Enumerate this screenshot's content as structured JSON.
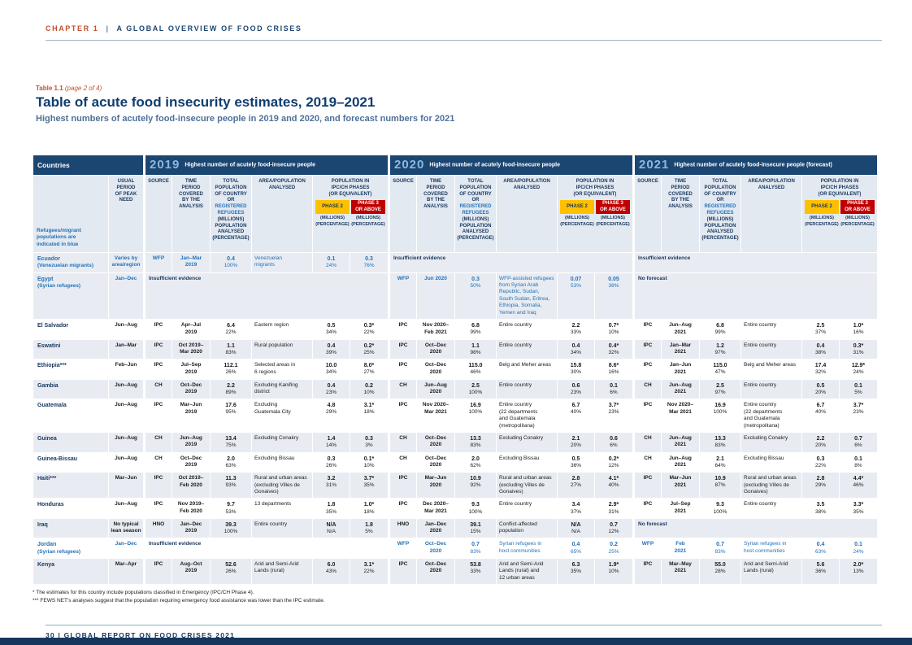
{
  "header": {
    "chapter": "CHAPTER 1",
    "divider": "|",
    "chapter_title": "A GLOBAL OVERVIEW OF FOOD CRISES"
  },
  "title_block": {
    "table_ref": "Table 1.1",
    "table_ref_page": "(page 2 of 4)",
    "title": "Table of acute food insecurity estimates, 2019–2021",
    "subtitle": "Highest numbers of acutely food-insecure people in 2019 and 2020, and forecast numbers for 2021"
  },
  "table": {
    "countries_label": "Countries",
    "refugee_note": "Refugees/migrant populations are indicated in blue",
    "period_header": "USUAL\nPERIOD\nOF PEAK\nNEED",
    "col_headers": {
      "source": "SOURCE",
      "time": "TIME\nPERIOD\nCOVERED\nBY THE\nANALYSIS",
      "total_top": "TOTAL\nPOPULATION\nOF COUNTRY OR",
      "total_blue": "REGISTERED\nREFUGEES",
      "total_bottom": "(MILLIONS)\nPOPULATION\nANALYSED\n(PERCENTAGE)",
      "area": "AREA/POPULATION\nANALYSED",
      "phases": "POPULATION IN\nIPC/CH PHASES\n(OR EQUIVALENT)",
      "phase2": "PHASE 2",
      "phase3": "PHASE 3\nOR ABOVE",
      "phase_sub": "(MILLIONS)\n(PERCENTAGE)"
    },
    "years": [
      {
        "year": "2019",
        "caption": "Highest number of acutely food-insecure people"
      },
      {
        "year": "2020",
        "caption": "Highest number of acutely food-insecure people"
      },
      {
        "year": "2021",
        "caption": "Highest number of acutely food-insecure people (forecast)"
      }
    ],
    "rows": [
      {
        "name": "Ecuador",
        "sub": "(Venezuelan migrants)",
        "blue": true,
        "shaded": true,
        "period": "Varies by\narea/region",
        "years": [
          {
            "source": "WFP",
            "time": "Jan–Mar\n2019",
            "total": "0.4\n100%",
            "area": "Venezuelan\nmigrants",
            "p2": "0.1\n24%",
            "p3": "0.3\n76%"
          },
          {
            "note": "Insufficient evidence"
          },
          {
            "note": "Insufficient evidence"
          }
        ]
      },
      {
        "name": "Egypt",
        "sub": "(Syrian refugees)",
        "blue": true,
        "shaded": true,
        "period": "Jan–Dec",
        "years": [
          {
            "note": "Insufficient evidence"
          },
          {
            "source": "WFP",
            "time": "Jun 2020",
            "total": "0.3\n50%",
            "area": "WFP-assisted refugees\nfrom Syrian Arab\nRepublic, Sudan,\nSouth Sudan, Eritrea,\nEthiopia, Somalia,\nYemen and Iraq",
            "p2": "0.07\n53%",
            "p3": "0.05\n38%"
          },
          {
            "note": "No forecast"
          }
        ]
      },
      {
        "name": "El Salvador",
        "sub": "",
        "blue": false,
        "shaded": false,
        "period": "Jun–Aug",
        "years": [
          {
            "source": "IPC",
            "time": "Apr–Jul\n2019",
            "total": "6.4\n22%",
            "area": "Eastern region",
            "p2": "0.5\n34%",
            "p3": "0.3*\n22%"
          },
          {
            "source": "IPC",
            "time": "Nov 2020–\nFeb 2021",
            "total": "6.8\n99%",
            "area": "Entire country",
            "p2": "2.2\n33%",
            "p3": "0.7*\n10%"
          },
          {
            "source": "IPC",
            "time": "Jun–Aug\n2021",
            "total": "6.8\n99%",
            "area": "Entire country",
            "p2": "2.5\n37%",
            "p3": "1.0*\n16%"
          }
        ]
      },
      {
        "name": "Eswatini",
        "sub": "",
        "blue": false,
        "shaded": true,
        "period": "Jan–Mar",
        "years": [
          {
            "source": "IPC",
            "time": "Oct 2019–\nMar 2020",
            "total": "1.1\n83%",
            "area": "Rural population",
            "p2": "0.4\n39%",
            "p3": "0.2*\n25%"
          },
          {
            "source": "IPC",
            "time": "Oct–Dec\n2020",
            "total": "1.1\n98%",
            "area": "Entire country",
            "p2": "0.4\n34%",
            "p3": "0.4*\n32%"
          },
          {
            "source": "IPC",
            "time": "Jan–Mar\n2021",
            "total": "1.2\n97%",
            "area": "Entire country",
            "p2": "0.4\n38%",
            "p3": "0.3*\n31%"
          }
        ]
      },
      {
        "name": "Ethiopia***",
        "sub": "",
        "blue": false,
        "shaded": false,
        "period": "Feb–Jun",
        "years": [
          {
            "source": "IPC",
            "time": "Jul–Sep\n2019",
            "total": "112.1\n26%",
            "area": "Selected areas in\n6 regions",
            "p2": "10.0\n34%",
            "p3": "8.0*\n27%"
          },
          {
            "source": "IPC",
            "time": "Oct–Dec\n2020",
            "total": "115.0\n46%",
            "area": "Belg and Meher areas",
            "p2": "15.8\n30%",
            "p3": "8.6*\n16%"
          },
          {
            "source": "IPC",
            "time": "Jan–Jun\n2021",
            "total": "115.0\n47%",
            "area": "Belg and Meher areas",
            "p2": "17.4\n32%",
            "p3": "12.9*\n24%"
          }
        ]
      },
      {
        "name": "Gambia",
        "sub": "",
        "blue": false,
        "shaded": true,
        "period": "Jun–Aug",
        "years": [
          {
            "source": "CH",
            "time": "Oct–Dec\n2019",
            "total": "2.2\n89%",
            "area": "Excluding Kanifing\ndistrict",
            "p2": "0.4\n23%",
            "p3": "0.2\n10%"
          },
          {
            "source": "CH",
            "time": "Jun–Aug\n2020",
            "total": "2.5\n100%",
            "area": "Entire country",
            "p2": "0.6\n23%",
            "p3": "0.1\n6%"
          },
          {
            "source": "CH",
            "time": "Jun–Aug\n2021",
            "total": "2.5\n97%",
            "area": "Entire country",
            "p2": "0.5\n20%",
            "p3": "0.1\n5%"
          }
        ]
      },
      {
        "name": "Guatemala",
        "sub": "",
        "blue": false,
        "shaded": false,
        "period": "Jun–Aug",
        "years": [
          {
            "source": "IPC",
            "time": "Mar–Jun\n2019",
            "total": "17.6\n95%",
            "area": "Excluding\nGuatemala City",
            "p2": "4.8\n29%",
            "p3": "3.1*\n18%"
          },
          {
            "source": "IPC",
            "time": "Nov 2020–\nMar 2021",
            "total": "16.9\n100%",
            "area": "Entire country\n(22 departments\nand Guatemala\n(metropolitana)",
            "p2": "6.7\n40%",
            "p3": "3.7*\n23%"
          },
          {
            "source": "IPC",
            "time": "Nov 2020–\nMar 2021",
            "total": "16.9\n100%",
            "area": "Entire country\n(22 departments\nand Guatemala\n(metropolitana)",
            "p2": "6.7\n40%",
            "p3": "3.7*\n23%"
          }
        ]
      },
      {
        "name": "Guinea",
        "sub": "",
        "blue": false,
        "shaded": true,
        "period": "Jun–Aug",
        "years": [
          {
            "source": "CH",
            "time": "Jun–Aug\n2019",
            "total": "13.4\n75%",
            "area": "Excluding Conakry",
            "p2": "1.4\n14%",
            "p3": "0.3\n3%"
          },
          {
            "source": "CH",
            "time": "Oct–Dec\n2020",
            "total": "13.3\n83%",
            "area": "Excluding Conakry",
            "p2": "2.1\n20%",
            "p3": "0.6\n6%"
          },
          {
            "source": "CH",
            "time": "Jun–Aug\n2021",
            "total": "13.3\n83%",
            "area": "Excluding Conakry",
            "p2": "2.2\n20%",
            "p3": "0.7\n6%"
          }
        ]
      },
      {
        "name": "Guinea-Bissau",
        "sub": "",
        "blue": false,
        "shaded": false,
        "period": "Jun–Aug",
        "years": [
          {
            "source": "CH",
            "time": "Oct–Dec\n2019",
            "total": "2.0\n63%",
            "area": "Excluding Bissau",
            "p2": "0.3\n26%",
            "p3": "0.1*\n10%"
          },
          {
            "source": "CH",
            "time": "Oct–Dec\n2020",
            "total": "2.0\n62%",
            "area": "Excluding Bissau",
            "p2": "0.5\n36%",
            "p3": "0.2*\n12%"
          },
          {
            "source": "CH",
            "time": "Jun–Aug\n2021",
            "total": "2.1\n64%",
            "area": "Excluding Bissau",
            "p2": "0.3\n22%",
            "p3": "0.1\n8%"
          }
        ]
      },
      {
        "name": "Haiti***",
        "sub": "",
        "blue": false,
        "shaded": true,
        "period": "Mar–Jun",
        "years": [
          {
            "source": "IPC",
            "time": "Oct 2019–\nFeb 2020",
            "total": "11.3\n93%",
            "area": "Rural and urban areas\n(excluding Villes de\nGonaives)",
            "p2": "3.2\n31%",
            "p3": "3.7*\n35%"
          },
          {
            "source": "IPC",
            "time": "Mar–Jun\n2020",
            "total": "10.9\n92%",
            "area": "Rural and urban areas\n(excluding Villes de\nGonaives)",
            "p2": "2.8\n27%",
            "p3": "4.1*\n40%"
          },
          {
            "source": "IPC",
            "time": "Mar–Jun\n2021",
            "total": "10.9\n87%",
            "area": "Rural and urban areas\n(excluding Villes de\nGonaives)",
            "p2": "2.8\n29%",
            "p3": "4.4*\n46%"
          }
        ]
      },
      {
        "name": "Honduras",
        "sub": "",
        "blue": false,
        "shaded": false,
        "period": "Jun–Aug",
        "years": [
          {
            "source": "IPC",
            "time": "Nov 2019–\nFeb 2020",
            "total": "9.7\n53%",
            "area": "13 departments",
            "p2": "1.8\n35%",
            "p3": "1.0*\n18%"
          },
          {
            "source": "IPC",
            "time": "Dec 2020–\nMar 2021",
            "total": "9.3\n100%",
            "area": "Entire country",
            "p2": "3.4\n37%",
            "p3": "2.9*\n31%"
          },
          {
            "source": "IPC",
            "time": "Jul–Sep\n2021",
            "total": "9.3\n100%",
            "area": "Entire country",
            "p2": "3.5\n38%",
            "p3": "3.3*\n35%"
          }
        ]
      },
      {
        "name": "Iraq",
        "sub": "",
        "blue": false,
        "shaded": true,
        "period": "No typical\nlean season",
        "years": [
          {
            "source": "HNO",
            "time": "Jan–Dec\n2019",
            "total": "39.3\n100%",
            "area": "Entire country",
            "p2": "N/A\nN/A",
            "p3": "1.8\n5%"
          },
          {
            "source": "HNO",
            "time": "Jan–Dec\n2020",
            "total": "39.1\n15%",
            "area": "Conflict-affected\npopulation",
            "p2": "N/A\nN/A",
            "p3": "0.7\n12%"
          },
          {
            "note": "No forecast"
          }
        ]
      },
      {
        "name": "Jordan",
        "sub": "(Syrian refugees)",
        "blue": true,
        "shaded": false,
        "period": "Jan–Dec",
        "years": [
          {
            "note": "Insufficient evidence"
          },
          {
            "source": "WFP",
            "time": "Oct–Dec\n2020",
            "total": "0.7\n83%",
            "area": "Syrian refugees in\nhost communities",
            "p2": "0.4\n65%",
            "p3": "0.2\n25%"
          },
          {
            "source": "WFP",
            "time": "Feb\n2021",
            "total": "0.7\n83%",
            "area": "Syrian refugees in\nhost communities",
            "p2": "0.4\n63%",
            "p3": "0.1\n24%"
          }
        ]
      },
      {
        "name": "Kenya",
        "sub": "",
        "blue": false,
        "shaded": true,
        "period": "Mar–Apr",
        "years": [
          {
            "source": "IPC",
            "time": "Aug–Oct\n2019",
            "total": "52.6\n26%",
            "area": "Arid and Semi-Arid\nLands (rural)",
            "p2": "6.0\n43%",
            "p3": "3.1*\n22%"
          },
          {
            "source": "IPC",
            "time": "Oct–Dec\n2020",
            "total": "53.8\n33%",
            "area": "Arid and Semi-Arid\nLands (rural) and\n12 urban areas",
            "p2": "6.3\n35%",
            "p3": "1.9*\n10%"
          },
          {
            "source": "IPC",
            "time": "Mar–May\n2021",
            "total": "55.0\n28%",
            "area": "Arid and Semi-Arid\nLands (rural)",
            "p2": "5.6\n36%",
            "p3": "2.0*\n13%"
          }
        ]
      }
    ]
  },
  "footnotes": [
    "* The estimates for this country include populations classified in Emergency (IPC/CH Phase 4).",
    "*** FEWS NET's analyses suggest that the population requiring emergency food assistance was lower than the IPC estimate."
  ],
  "footer": {
    "page": "30",
    "divider": "|",
    "text": "GLOBAL REPORT ON FOOD CRISES 2021"
  }
}
